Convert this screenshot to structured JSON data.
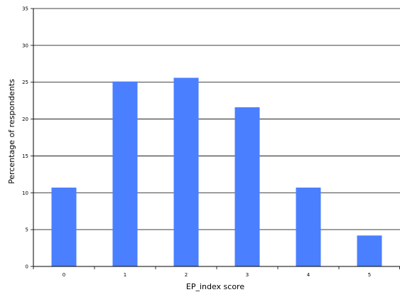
{
  "chart_data": {
    "type": "bar",
    "title": "",
    "xlabel": "EP_index score",
    "ylabel": "Percentage  of  respondents",
    "categories": [
      "0",
      "1",
      "2",
      "3",
      "4",
      "5"
    ],
    "values": [
      10.7,
      25.1,
      25.6,
      21.6,
      10.7,
      4.2
    ],
    "ylim": [
      0,
      35
    ],
    "yticks": [
      0,
      5,
      10,
      15,
      20,
      25,
      30,
      35
    ],
    "grid": true,
    "legend": "none",
    "bar_color": "#4a7fff",
    "grid_color": "#000000"
  }
}
